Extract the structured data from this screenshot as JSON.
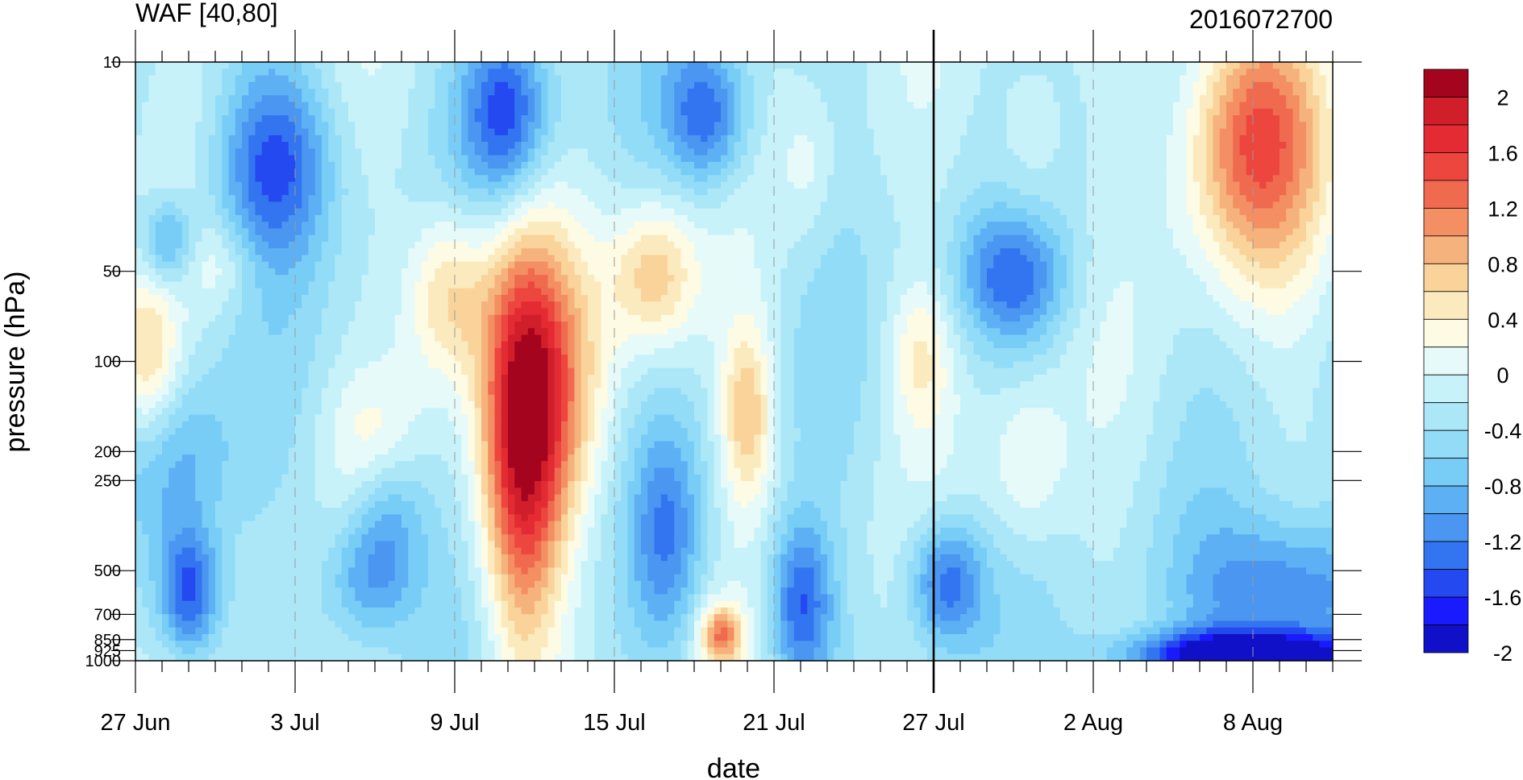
{
  "chart_data": {
    "type": "heatmap",
    "title": "WAF [40,80]",
    "subtitle": "2016072700",
    "xlabel": "date",
    "ylabel": "pressure (hPa)",
    "x_ticks": [
      {
        "label": "27 Jun",
        "day": 0
      },
      {
        "label": "3 Jul",
        "day": 6
      },
      {
        "label": "9 Jul",
        "day": 12
      },
      {
        "label": "15 Jul",
        "day": 18
      },
      {
        "label": "21 Jul",
        "day": 24
      },
      {
        "label": "27 Jul",
        "day": 30
      },
      {
        "label": "2 Aug",
        "day": 36
      },
      {
        "label": "8 Aug",
        "day": 42
      }
    ],
    "xlim_days": [
      0,
      45
    ],
    "current_day": 30,
    "y_ticks": [
      {
        "label": "10",
        "p": 10
      },
      {
        "label": "50",
        "p": 50
      },
      {
        "label": "100",
        "p": 100
      },
      {
        "label": "200",
        "p": 200
      },
      {
        "label": "250",
        "p": 250
      },
      {
        "label": "500",
        "p": 500
      },
      {
        "label": "700",
        "p": 700
      },
      {
        "label": "850",
        "p": 850
      },
      {
        "label": "925",
        "p": 925
      },
      {
        "label": "1000",
        "p": 1000
      }
    ],
    "ylim": [
      1000,
      10
    ],
    "y_scale": "log",
    "levels": [
      -2,
      -1.8,
      -1.6,
      -1.4,
      -1.2,
      -1,
      -0.8,
      -0.6,
      -0.4,
      -0.2,
      0,
      0.2,
      0.4,
      0.6,
      0.8,
      1,
      1.2,
      1.4,
      1.6,
      1.8,
      2
    ],
    "colors": [
      "#1010c8",
      "#1a1aff",
      "#2549f0",
      "#3375f0",
      "#4a96f0",
      "#5eb0f5",
      "#78cdf7",
      "#93dcf8",
      "#ace7f8",
      "#c7f2f9",
      "#e6fafa",
      "#fdfbe3",
      "#fbeabd",
      "#f9d39a",
      "#f6b27c",
      "#f38f63",
      "#f06a4f",
      "#ec463f",
      "#e42a33",
      "#d01f2b",
      "#a5041f"
    ],
    "colorbar_labels": [
      "2",
      "1.6",
      "1.2",
      "0.8",
      "0.4",
      "0",
      "-0.4",
      "-0.8",
      "-1.2",
      "-1.6",
      "-2"
    ],
    "pressure_levels": [
      10,
      20,
      30,
      50,
      70,
      100,
      150,
      200,
      250,
      300,
      400,
      500,
      700,
      850,
      925,
      1000
    ],
    "features": [
      {
        "day": 5.2,
        "p": 22,
        "value": -1.2,
        "width_days": 2.2,
        "depth": 0.32
      },
      {
        "day": 1.2,
        "p": 40,
        "value": -0.9,
        "width_days": 1.0,
        "depth": 0.15
      },
      {
        "day": 3.2,
        "p": 48,
        "value": 0.35,
        "width_days": 1.3,
        "depth": 0.14
      },
      {
        "day": 0.4,
        "p": 100,
        "value": 0.9,
        "width_days": 1.2,
        "depth": 0.3
      },
      {
        "day": 2.0,
        "p": 600,
        "value": -1.4,
        "width_days": 1.2,
        "depth": 0.22
      },
      {
        "day": 1.5,
        "p": 220,
        "value": -0.7,
        "width_days": 2.0,
        "depth": 0.3
      },
      {
        "day": 9.5,
        "p": 350,
        "value": -0.8,
        "width_days": 1.5,
        "depth": 0.3
      },
      {
        "day": 8.5,
        "p": 550,
        "value": -0.6,
        "width_days": 1.6,
        "depth": 0.2
      },
      {
        "day": 11.8,
        "p": 60,
        "value": 1.0,
        "width_days": 1.6,
        "depth": 0.3
      },
      {
        "day": 9.0,
        "p": 180,
        "value": 0.45,
        "width_days": 1.8,
        "depth": 0.22
      },
      {
        "day": 14.5,
        "p": 200,
        "value": 1.8,
        "width_days": 1.5,
        "depth": 0.7
      },
      {
        "day": 15.6,
        "p": 120,
        "value": 1.0,
        "width_days": 2.2,
        "depth": 0.5
      },
      {
        "day": 19.5,
        "p": 52,
        "value": 1.0,
        "width_days": 1.6,
        "depth": 0.25
      },
      {
        "day": 14.0,
        "p": 15,
        "value": -1.3,
        "width_days": 1.6,
        "depth": 0.3
      },
      {
        "day": 21.5,
        "p": 15,
        "value": -1.2,
        "width_days": 1.6,
        "depth": 0.25
      },
      {
        "day": 20.0,
        "p": 380,
        "value": -0.8,
        "width_days": 1.3,
        "depth": 0.35
      },
      {
        "day": 23.0,
        "p": 150,
        "value": 1.0,
        "width_days": 1.0,
        "depth": 0.3
      },
      {
        "day": 22.0,
        "p": 820,
        "value": 1.3,
        "width_days": 0.8,
        "depth": 0.1
      },
      {
        "day": 25.0,
        "p": 650,
        "value": -1.2,
        "width_days": 1.2,
        "depth": 0.28
      },
      {
        "day": 25.3,
        "p": 22,
        "value": 0.3,
        "width_days": 1.0,
        "depth": 0.25
      },
      {
        "day": 29.5,
        "p": 95,
        "value": 0.6,
        "width_days": 1.2,
        "depth": 0.25
      },
      {
        "day": 30.5,
        "p": 550,
        "value": -1.2,
        "width_days": 1.4,
        "depth": 0.22
      },
      {
        "day": 33.0,
        "p": 52,
        "value": -1.0,
        "width_days": 2.0,
        "depth": 0.22
      },
      {
        "day": 33.5,
        "p": 20,
        "value": 0.4,
        "width_days": 1.5,
        "depth": 0.35
      },
      {
        "day": 33.5,
        "p": 220,
        "value": 0.5,
        "width_days": 1.4,
        "depth": 0.28
      },
      {
        "day": 42.0,
        "p": 18,
        "value": 1.7,
        "width_days": 2.6,
        "depth": 0.45
      },
      {
        "day": 42.0,
        "p": 960,
        "value": -2.0,
        "width_days": 4.5,
        "depth": 0.08
      },
      {
        "day": 43.5,
        "p": 600,
        "value": -1.1,
        "width_days": 3.5,
        "depth": 0.25
      }
    ]
  }
}
